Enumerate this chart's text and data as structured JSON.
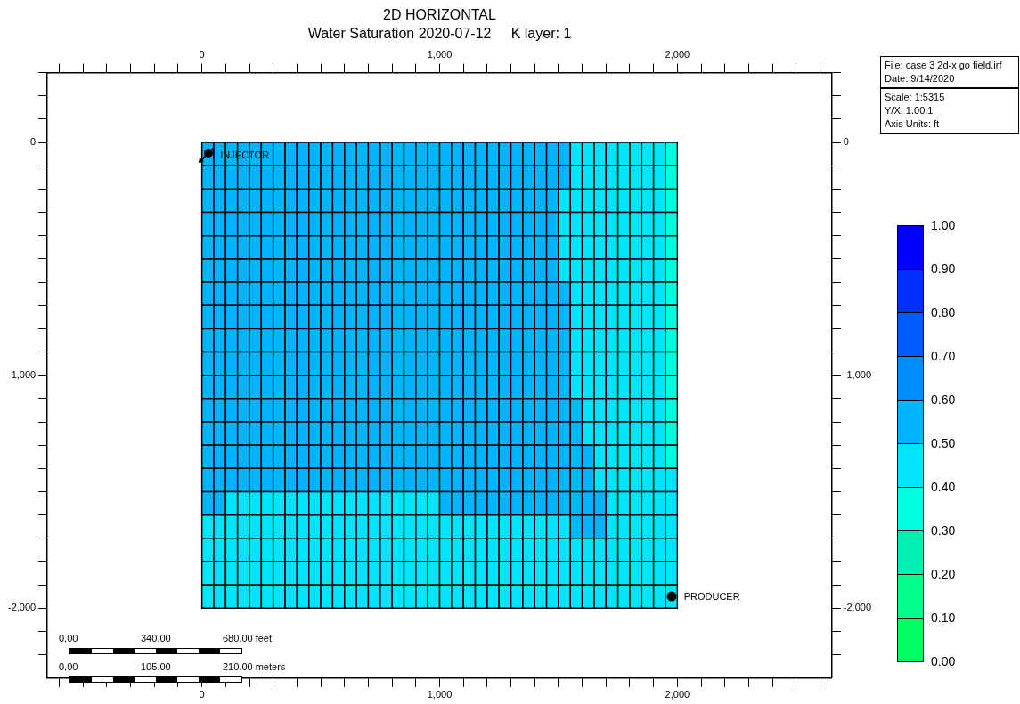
{
  "chart_data": {
    "type": "heatmap",
    "title": "2D HORIZONTAL",
    "subtitle": "Water Saturation 2020-07-12     K layer: 1",
    "x": [
      25,
      75,
      125,
      175,
      225,
      275,
      325,
      375,
      425,
      475,
      525,
      575,
      625,
      675,
      725,
      775,
      825,
      875,
      925,
      975,
      1025,
      1075,
      1125,
      1175,
      1225,
      1275,
      1325,
      1375,
      1425,
      1475,
      1525,
      1575,
      1625,
      1675,
      1725,
      1775,
      1825,
      1875,
      1925,
      1975
    ],
    "y": [
      -50,
      -150,
      -250,
      -350,
      -450,
      -550,
      -650,
      -750,
      -850,
      -950,
      -1050,
      -1150,
      -1250,
      -1350,
      -1450,
      -1550,
      -1650,
      -1750,
      -1850,
      -1950
    ],
    "cells": [
      [
        0.55,
        0.55,
        0.55,
        0.55,
        0.55,
        0.55,
        0.55,
        0.55,
        0.55,
        0.55,
        0.55,
        0.55,
        0.55,
        0.55,
        0.55,
        0.55,
        0.55,
        0.55,
        0.55,
        0.55,
        0.55,
        0.55,
        0.55,
        0.55,
        0.55,
        0.55,
        0.55,
        0.55,
        0.55,
        0.55,
        0.55,
        0.45,
        0.45,
        0.45,
        0.45,
        0.45,
        0.45,
        0.45,
        0.45,
        0.35
      ],
      [
        0.55,
        0.55,
        0.55,
        0.55,
        0.55,
        0.55,
        0.55,
        0.55,
        0.55,
        0.55,
        0.55,
        0.55,
        0.55,
        0.55,
        0.55,
        0.55,
        0.55,
        0.55,
        0.55,
        0.55,
        0.55,
        0.55,
        0.55,
        0.55,
        0.55,
        0.55,
        0.55,
        0.55,
        0.55,
        0.55,
        0.55,
        0.45,
        0.45,
        0.45,
        0.45,
        0.45,
        0.45,
        0.45,
        0.45,
        0.35
      ],
      [
        0.55,
        0.55,
        0.55,
        0.55,
        0.55,
        0.55,
        0.55,
        0.55,
        0.55,
        0.55,
        0.55,
        0.55,
        0.55,
        0.55,
        0.55,
        0.55,
        0.55,
        0.55,
        0.55,
        0.55,
        0.55,
        0.55,
        0.55,
        0.55,
        0.55,
        0.55,
        0.55,
        0.55,
        0.55,
        0.55,
        0.45,
        0.45,
        0.45,
        0.45,
        0.45,
        0.45,
        0.45,
        0.45,
        0.45,
        0.35
      ],
      [
        0.55,
        0.55,
        0.55,
        0.55,
        0.55,
        0.55,
        0.55,
        0.55,
        0.55,
        0.55,
        0.55,
        0.55,
        0.55,
        0.55,
        0.55,
        0.55,
        0.55,
        0.55,
        0.55,
        0.55,
        0.55,
        0.55,
        0.55,
        0.55,
        0.55,
        0.55,
        0.55,
        0.55,
        0.55,
        0.55,
        0.45,
        0.45,
        0.45,
        0.45,
        0.45,
        0.45,
        0.45,
        0.45,
        0.45,
        0.35
      ],
      [
        0.55,
        0.55,
        0.55,
        0.55,
        0.55,
        0.55,
        0.55,
        0.55,
        0.55,
        0.55,
        0.55,
        0.55,
        0.55,
        0.55,
        0.55,
        0.55,
        0.55,
        0.55,
        0.55,
        0.55,
        0.55,
        0.55,
        0.55,
        0.55,
        0.55,
        0.55,
        0.55,
        0.55,
        0.55,
        0.55,
        0.45,
        0.45,
        0.45,
        0.45,
        0.45,
        0.45,
        0.45,
        0.45,
        0.45,
        0.35
      ],
      [
        0.55,
        0.55,
        0.55,
        0.55,
        0.55,
        0.55,
        0.55,
        0.55,
        0.55,
        0.55,
        0.55,
        0.55,
        0.55,
        0.55,
        0.55,
        0.55,
        0.55,
        0.55,
        0.55,
        0.55,
        0.55,
        0.55,
        0.55,
        0.55,
        0.55,
        0.55,
        0.55,
        0.55,
        0.55,
        0.55,
        0.45,
        0.45,
        0.45,
        0.45,
        0.45,
        0.45,
        0.45,
        0.45,
        0.45,
        0.35
      ],
      [
        0.55,
        0.55,
        0.55,
        0.55,
        0.55,
        0.55,
        0.55,
        0.55,
        0.55,
        0.55,
        0.55,
        0.55,
        0.55,
        0.55,
        0.55,
        0.55,
        0.55,
        0.55,
        0.55,
        0.55,
        0.55,
        0.55,
        0.55,
        0.55,
        0.55,
        0.55,
        0.55,
        0.55,
        0.55,
        0.55,
        0.55,
        0.45,
        0.45,
        0.45,
        0.45,
        0.45,
        0.45,
        0.45,
        0.45,
        0.35
      ],
      [
        0.55,
        0.55,
        0.55,
        0.55,
        0.55,
        0.55,
        0.55,
        0.55,
        0.55,
        0.55,
        0.55,
        0.55,
        0.55,
        0.55,
        0.55,
        0.55,
        0.55,
        0.55,
        0.55,
        0.55,
        0.55,
        0.55,
        0.55,
        0.55,
        0.55,
        0.55,
        0.55,
        0.55,
        0.55,
        0.55,
        0.55,
        0.45,
        0.45,
        0.45,
        0.45,
        0.45,
        0.45,
        0.45,
        0.45,
        0.35
      ],
      [
        0.55,
        0.55,
        0.55,
        0.55,
        0.55,
        0.55,
        0.55,
        0.55,
        0.55,
        0.55,
        0.55,
        0.55,
        0.55,
        0.55,
        0.55,
        0.55,
        0.55,
        0.55,
        0.55,
        0.55,
        0.55,
        0.55,
        0.55,
        0.55,
        0.55,
        0.55,
        0.55,
        0.55,
        0.55,
        0.55,
        0.55,
        0.45,
        0.45,
        0.45,
        0.45,
        0.45,
        0.45,
        0.45,
        0.45,
        0.35
      ],
      [
        0.55,
        0.55,
        0.55,
        0.55,
        0.55,
        0.55,
        0.55,
        0.55,
        0.55,
        0.55,
        0.55,
        0.55,
        0.55,
        0.55,
        0.55,
        0.55,
        0.55,
        0.55,
        0.55,
        0.55,
        0.55,
        0.55,
        0.55,
        0.55,
        0.55,
        0.55,
        0.55,
        0.55,
        0.55,
        0.55,
        0.55,
        0.45,
        0.45,
        0.45,
        0.45,
        0.45,
        0.45,
        0.45,
        0.45,
        0.35
      ],
      [
        0.55,
        0.55,
        0.55,
        0.55,
        0.55,
        0.55,
        0.55,
        0.55,
        0.55,
        0.55,
        0.55,
        0.55,
        0.55,
        0.55,
        0.55,
        0.55,
        0.55,
        0.55,
        0.55,
        0.55,
        0.55,
        0.55,
        0.55,
        0.55,
        0.55,
        0.55,
        0.55,
        0.55,
        0.55,
        0.55,
        0.55,
        0.45,
        0.45,
        0.45,
        0.45,
        0.45,
        0.45,
        0.45,
        0.45,
        0.35
      ],
      [
        0.55,
        0.55,
        0.55,
        0.55,
        0.55,
        0.55,
        0.55,
        0.55,
        0.55,
        0.55,
        0.55,
        0.55,
        0.55,
        0.55,
        0.55,
        0.55,
        0.55,
        0.55,
        0.55,
        0.55,
        0.55,
        0.55,
        0.55,
        0.55,
        0.55,
        0.55,
        0.55,
        0.55,
        0.55,
        0.55,
        0.55,
        0.55,
        0.45,
        0.45,
        0.45,
        0.45,
        0.45,
        0.45,
        0.45,
        0.35
      ],
      [
        0.55,
        0.55,
        0.55,
        0.55,
        0.55,
        0.55,
        0.55,
        0.55,
        0.55,
        0.55,
        0.55,
        0.55,
        0.55,
        0.55,
        0.55,
        0.55,
        0.55,
        0.55,
        0.55,
        0.55,
        0.55,
        0.55,
        0.55,
        0.55,
        0.55,
        0.55,
        0.55,
        0.55,
        0.55,
        0.55,
        0.55,
        0.55,
        0.45,
        0.45,
        0.45,
        0.45,
        0.45,
        0.45,
        0.45,
        0.35
      ],
      [
        0.55,
        0.55,
        0.55,
        0.55,
        0.55,
        0.55,
        0.55,
        0.55,
        0.55,
        0.55,
        0.55,
        0.55,
        0.55,
        0.55,
        0.55,
        0.55,
        0.55,
        0.55,
        0.55,
        0.55,
        0.55,
        0.55,
        0.55,
        0.55,
        0.55,
        0.55,
        0.55,
        0.55,
        0.55,
        0.55,
        0.55,
        0.55,
        0.55,
        0.45,
        0.45,
        0.45,
        0.45,
        0.45,
        0.45,
        0.35
      ],
      [
        0.55,
        0.55,
        0.55,
        0.55,
        0.55,
        0.55,
        0.55,
        0.55,
        0.55,
        0.55,
        0.55,
        0.55,
        0.55,
        0.55,
        0.55,
        0.55,
        0.55,
        0.55,
        0.55,
        0.55,
        0.55,
        0.55,
        0.55,
        0.55,
        0.55,
        0.55,
        0.55,
        0.55,
        0.55,
        0.55,
        0.55,
        0.55,
        0.55,
        0.45,
        0.45,
        0.45,
        0.45,
        0.45,
        0.45,
        0.45
      ],
      [
        0.55,
        0.55,
        0.45,
        0.45,
        0.45,
        0.45,
        0.45,
        0.45,
        0.45,
        0.45,
        0.45,
        0.45,
        0.45,
        0.45,
        0.45,
        0.45,
        0.45,
        0.45,
        0.45,
        0.45,
        0.55,
        0.55,
        0.55,
        0.55,
        0.55,
        0.55,
        0.55,
        0.55,
        0.55,
        0.55,
        0.55,
        0.55,
        0.55,
        0.55,
        0.45,
        0.45,
        0.45,
        0.45,
        0.45,
        0.45
      ],
      [
        0.45,
        0.45,
        0.45,
        0.45,
        0.45,
        0.45,
        0.45,
        0.45,
        0.45,
        0.45,
        0.45,
        0.45,
        0.45,
        0.45,
        0.45,
        0.45,
        0.45,
        0.45,
        0.45,
        0.45,
        0.45,
        0.45,
        0.45,
        0.45,
        0.45,
        0.45,
        0.45,
        0.45,
        0.45,
        0.45,
        0.45,
        0.55,
        0.55,
        0.55,
        0.45,
        0.45,
        0.45,
        0.45,
        0.45,
        0.45
      ],
      [
        0.45,
        0.45,
        0.45,
        0.45,
        0.45,
        0.45,
        0.45,
        0.45,
        0.45,
        0.45,
        0.45,
        0.45,
        0.45,
        0.45,
        0.45,
        0.45,
        0.45,
        0.45,
        0.45,
        0.45,
        0.45,
        0.45,
        0.45,
        0.45,
        0.45,
        0.45,
        0.45,
        0.45,
        0.45,
        0.45,
        0.45,
        0.45,
        0.45,
        0.45,
        0.45,
        0.45,
        0.45,
        0.45,
        0.45,
        0.45
      ],
      [
        0.45,
        0.45,
        0.45,
        0.45,
        0.45,
        0.45,
        0.45,
        0.45,
        0.45,
        0.45,
        0.45,
        0.45,
        0.45,
        0.45,
        0.45,
        0.45,
        0.45,
        0.45,
        0.45,
        0.45,
        0.45,
        0.45,
        0.45,
        0.45,
        0.45,
        0.45,
        0.45,
        0.45,
        0.45,
        0.45,
        0.45,
        0.45,
        0.45,
        0.45,
        0.45,
        0.45,
        0.45,
        0.45,
        0.45,
        0.45
      ],
      [
        0.45,
        0.45,
        0.45,
        0.45,
        0.45,
        0.45,
        0.45,
        0.45,
        0.45,
        0.45,
        0.45,
        0.45,
        0.45,
        0.45,
        0.45,
        0.45,
        0.45,
        0.45,
        0.45,
        0.45,
        0.45,
        0.45,
        0.45,
        0.45,
        0.45,
        0.45,
        0.45,
        0.45,
        0.45,
        0.45,
        0.45,
        0.45,
        0.45,
        0.45,
        0.45,
        0.45,
        0.45,
        0.45,
        0.45,
        0.45
      ]
    ],
    "clim": [
      0,
      1
    ],
    "cticks": [
      {
        "value": 0,
        "label": "0.00"
      },
      {
        "value": 0.1,
        "label": "0.10"
      },
      {
        "value": 0.2,
        "label": "0.20"
      },
      {
        "value": 0.3,
        "label": "0.30"
      },
      {
        "value": 0.4,
        "label": "0.40"
      },
      {
        "value": 0.5,
        "label": "0.50"
      },
      {
        "value": 0.6,
        "label": "0.60"
      },
      {
        "value": 0.7,
        "label": "0.70"
      },
      {
        "value": 0.8,
        "label": "0.80"
      },
      {
        "value": 0.9,
        "label": "0.90"
      },
      {
        "value": 1,
        "label": "1.00"
      }
    ],
    "xlim": [
      -650,
      2650
    ],
    "xticks": [
      {
        "value": -600,
        "label": null
      },
      {
        "value": -500,
        "label": null
      },
      {
        "value": -400,
        "label": null
      },
      {
        "value": -300,
        "label": null
      },
      {
        "value": -200,
        "label": null
      },
      {
        "value": -100,
        "label": null
      },
      0,
      {
        "value": 100,
        "label": null
      },
      {
        "value": 200,
        "label": null
      },
      {
        "value": 300,
        "label": null
      },
      {
        "value": 400,
        "label": null
      },
      {
        "value": 500,
        "label": null
      },
      {
        "value": 600,
        "label": null
      },
      {
        "value": 700,
        "label": null
      },
      {
        "value": 800,
        "label": null
      },
      {
        "value": 900,
        "label": null
      },
      {
        "value": 1000,
        "label": "1,000"
      },
      {
        "value": 1100,
        "label": null
      },
      {
        "value": 1200,
        "label": null
      },
      {
        "value": 1300,
        "label": null
      },
      {
        "value": 1400,
        "label": null
      },
      {
        "value": 1500,
        "label": null
      },
      {
        "value": 1600,
        "label": null
      },
      {
        "value": 1700,
        "label": null
      },
      {
        "value": 1800,
        "label": null
      },
      {
        "value": 1900,
        "label": null
      },
      {
        "value": 2000,
        "label": "2,000"
      },
      {
        "value": 2100,
        "label": null
      },
      {
        "value": 2200,
        "label": null
      },
      {
        "value": 2300,
        "label": null
      },
      {
        "value": 2400,
        "label": null
      },
      {
        "value": 2500,
        "label": null
      },
      {
        "value": 2600,
        "label": null
      }
    ],
    "x2lim": [
      -650,
      2650
    ],
    "x2ticks": [
      {
        "value": -600,
        "label": null
      },
      {
        "value": -500,
        "label": null
      },
      {
        "value": -400,
        "label": null
      },
      {
        "value": -300,
        "label": null
      },
      {
        "value": -200,
        "label": null
      },
      {
        "value": -100,
        "label": null
      },
      0,
      {
        "value": 100,
        "label": null
      },
      {
        "value": 200,
        "label": null
      },
      {
        "value": 300,
        "label": null
      },
      {
        "value": 400,
        "label": null
      },
      {
        "value": 500,
        "label": null
      },
      {
        "value": 600,
        "label": null
      },
      {
        "value": 700,
        "label": null
      },
      {
        "value": 800,
        "label": null
      },
      {
        "value": 900,
        "label": null
      },
      {
        "value": 1000,
        "label": "1,000"
      },
      {
        "value": 1100,
        "label": null
      },
      {
        "value": 1200,
        "label": null
      },
      {
        "value": 1300,
        "label": null
      },
      {
        "value": 1400,
        "label": null
      },
      {
        "value": 1500,
        "label": null
      },
      {
        "value": 1600,
        "label": null
      },
      {
        "value": 1700,
        "label": null
      },
      {
        "value": 1800,
        "label": null
      },
      {
        "value": 1900,
        "label": null
      },
      {
        "value": 2000,
        "label": "2,000"
      },
      {
        "value": 2100,
        "label": null
      },
      {
        "value": 2200,
        "label": null
      },
      {
        "value": 2300,
        "label": null
      },
      {
        "value": 2400,
        "label": null
      },
      {
        "value": 2500,
        "label": null
      },
      {
        "value": 2600,
        "label": null
      }
    ],
    "ylim": [
      -2300,
      300
    ],
    "yticks": [
      {
        "value": 300,
        "label": null
      },
      {
        "value": 200,
        "label": null
      },
      {
        "value": 100,
        "label": null
      },
      0,
      {
        "value": -100,
        "label": null
      },
      {
        "value": -200,
        "label": null
      },
      {
        "value": -300,
        "label": null
      },
      {
        "value": -400,
        "label": null
      },
      {
        "value": -500,
        "label": null
      },
      {
        "value": -600,
        "label": null
      },
      {
        "value": -700,
        "label": null
      },
      {
        "value": -800,
        "label": null
      },
      {
        "value": -900,
        "label": null
      },
      {
        "value": -1000,
        "label": "-1,000"
      },
      {
        "value": -1100,
        "label": null
      },
      {
        "value": -1200,
        "label": null
      },
      {
        "value": -1300,
        "label": null
      },
      {
        "value": -1400,
        "label": null
      },
      {
        "value": -1500,
        "label": null
      },
      {
        "value": -1600,
        "label": null
      },
      {
        "value": -1700,
        "label": null
      },
      {
        "value": -1800,
        "label": null
      },
      {
        "value": -1900,
        "label": null
      },
      {
        "value": -2000,
        "label": "-2,000"
      },
      {
        "value": -2100,
        "label": null
      },
      {
        "value": -2200,
        "label": null
      }
    ],
    "y2lim": [
      -2300,
      300
    ],
    "y2ticks": [
      {
        "value": 300,
        "label": null
      },
      {
        "value": 200,
        "label": null
      },
      {
        "value": 100,
        "label": null
      },
      0,
      {
        "value": -100,
        "label": null
      },
      {
        "value": -200,
        "label": null
      },
      {
        "value": -300,
        "label": null
      },
      {
        "value": -400,
        "label": null
      },
      {
        "value": -500,
        "label": null
      },
      {
        "value": -600,
        "label": null
      },
      {
        "value": -700,
        "label": null
      },
      {
        "value": -800,
        "label": null
      },
      {
        "value": -900,
        "label": null
      },
      {
        "value": -1000,
        "label": "-1,000"
      },
      {
        "value": -1100,
        "label": null
      },
      {
        "value": -1200,
        "label": null
      },
      {
        "value": -1300,
        "label": null
      },
      {
        "value": -1400,
        "label": null
      },
      {
        "value": -1500,
        "label": null
      },
      {
        "value": -1600,
        "label": null
      },
      {
        "value": -1700,
        "label": null
      },
      {
        "value": -1800,
        "label": null
      },
      {
        "value": -1900,
        "label": null
      },
      {
        "value": -2000,
        "label": "-2,000"
      },
      {
        "value": -2100,
        "label": null
      },
      {
        "value": -2200,
        "label": null
      }
    ],
    "annotations": [
      "INJECTOR",
      "PRODUCER",
      "File: case 3 2d-x go field.irf",
      "Date: 9/14/2020",
      "Scale: 1:5315",
      "Y/X: 1.00:1",
      "Axis Units: ft",
      "0.00",
      "340.00",
      "680.00 feet",
      "0.00",
      "105.00",
      "210.00 meters"
    ]
  }
}
